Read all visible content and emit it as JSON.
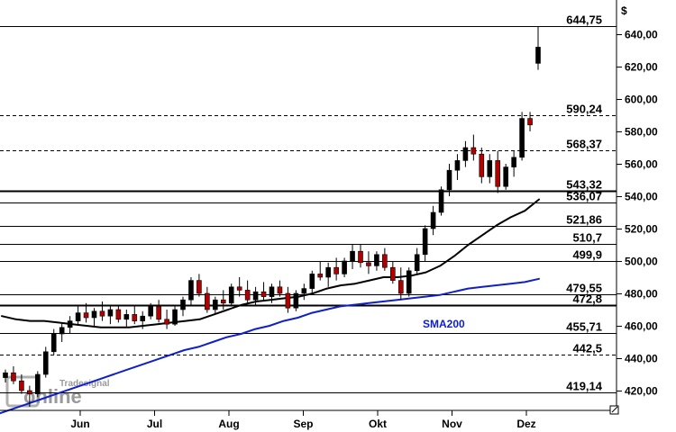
{
  "chart_data": {
    "type": "candlestick",
    "currency_label": "$",
    "ylim": [
      405,
      650
    ],
    "y_ticks": [
      420,
      440,
      460,
      480,
      500,
      520,
      540,
      560,
      580,
      600,
      620,
      640
    ],
    "y_tick_labels": [
      "420,00",
      "440,00",
      "460,00",
      "480,00",
      "500,00",
      "520,00",
      "540,00",
      "560,00",
      "580,00",
      "600,00",
      "620,00",
      "640,00"
    ],
    "x_labels": [
      "Jun",
      "Jul",
      "Aug",
      "Sep",
      "Okt",
      "Nov",
      "Dez"
    ],
    "levels": [
      {
        "value": 644.75,
        "label": "644,75",
        "style": "solid"
      },
      {
        "value": 590.24,
        "label": "590,24",
        "style": "dashed"
      },
      {
        "value": 568.37,
        "label": "568,37",
        "style": "dashed"
      },
      {
        "value": 543.32,
        "label": "543,32",
        "style": "bold"
      },
      {
        "value": 536.07,
        "label": "536,07",
        "style": "solid"
      },
      {
        "value": 521.86,
        "label": "521,86",
        "style": "solid"
      },
      {
        "value": 510.7,
        "label": "510,7",
        "style": "solid"
      },
      {
        "value": 499.9,
        "label": "499,9",
        "style": "solid"
      },
      {
        "value": 479.55,
        "label": "479,55",
        "style": "solid"
      },
      {
        "value": 472.8,
        "label": "472,8",
        "style": "bold"
      },
      {
        "value": 455.71,
        "label": "455,71",
        "style": "solid"
      },
      {
        "value": 442.5,
        "label": "442,5",
        "style": "dashed"
      },
      {
        "value": 419.14,
        "label": "419,14",
        "style": "solid"
      }
    ],
    "series": [
      {
        "name": "SMA200",
        "color": "#1020c8",
        "values": [
          406,
          409,
          412,
          415,
          418,
          421,
          424,
          427,
          430,
          433,
          436,
          439,
          442,
          445,
          447,
          450,
          453,
          455,
          458,
          460,
          463,
          465,
          468,
          470,
          472,
          473,
          474,
          475,
          476,
          477,
          478,
          479,
          481,
          483,
          484,
          485,
          486,
          487,
          489
        ]
      },
      {
        "name": "",
        "color": "#000000",
        "values": [
          466,
          464,
          463,
          463,
          462,
          461,
          460,
          459,
          459,
          459,
          460,
          461,
          462,
          463,
          464,
          467,
          470,
          473,
          475,
          476,
          477,
          478,
          480,
          483,
          485,
          486,
          488,
          490,
          490,
          491,
          493,
          497,
          503,
          510,
          516,
          522,
          527,
          531,
          538
        ]
      }
    ],
    "candles": [
      [
        428,
        433,
        425,
        431
      ],
      [
        431,
        435,
        424,
        426
      ],
      [
        426,
        430,
        418,
        420
      ],
      [
        420,
        423,
        410,
        418
      ],
      [
        418,
        432,
        416,
        430
      ],
      [
        430,
        447,
        428,
        444
      ],
      [
        444,
        458,
        442,
        455
      ],
      [
        455,
        462,
        450,
        459
      ],
      [
        459,
        466,
        455,
        463
      ],
      [
        463,
        472,
        460,
        468
      ],
      [
        468,
        474,
        462,
        465
      ],
      [
        465,
        471,
        459,
        469
      ],
      [
        469,
        475,
        463,
        466
      ],
      [
        466,
        472,
        461,
        470
      ],
      [
        470,
        473,
        462,
        464
      ],
      [
        464,
        470,
        459,
        467
      ],
      [
        467,
        472,
        461,
        463
      ],
      [
        463,
        469,
        458,
        466
      ],
      [
        466,
        474,
        464,
        472
      ],
      [
        472,
        476,
        462,
        464
      ],
      [
        464,
        470,
        458,
        461
      ],
      [
        461,
        472,
        460,
        470
      ],
      [
        470,
        478,
        466,
        476
      ],
      [
        476,
        490,
        472,
        488
      ],
      [
        488,
        492,
        478,
        480
      ],
      [
        480,
        484,
        468,
        470
      ],
      [
        470,
        478,
        467,
        476
      ],
      [
        476,
        482,
        470,
        474
      ],
      [
        474,
        486,
        472,
        484
      ],
      [
        484,
        490,
        478,
        482
      ],
      [
        482,
        488,
        474,
        476
      ],
      [
        476,
        484,
        472,
        481
      ],
      [
        481,
        487,
        476,
        478
      ],
      [
        478,
        486,
        474,
        484
      ],
      [
        484,
        488,
        478,
        480
      ],
      [
        480,
        484,
        468,
        471
      ],
      [
        471,
        482,
        469,
        480
      ],
      [
        480,
        486,
        476,
        483
      ],
      [
        483,
        494,
        480,
        492
      ],
      [
        492,
        500,
        488,
        490
      ],
      [
        490,
        499,
        484,
        496
      ],
      [
        496,
        502,
        488,
        492
      ],
      [
        492,
        502,
        490,
        500
      ],
      [
        500,
        510,
        495,
        506
      ],
      [
        506,
        510,
        496,
        499
      ],
      [
        499,
        506,
        492,
        497
      ],
      [
        497,
        506,
        494,
        504
      ],
      [
        504,
        508,
        494,
        496
      ],
      [
        496,
        500,
        486,
        488
      ],
      [
        488,
        496,
        476,
        480
      ],
      [
        480,
        496,
        478,
        494
      ],
      [
        494,
        508,
        492,
        504
      ],
      [
        504,
        522,
        500,
        520
      ],
      [
        520,
        534,
        516,
        530
      ],
      [
        530,
        546,
        528,
        544
      ],
      [
        544,
        560,
        540,
        556
      ],
      [
        556,
        566,
        550,
        562
      ],
      [
        562,
        574,
        558,
        570
      ],
      [
        570,
        578,
        562,
        566
      ],
      [
        566,
        570,
        548,
        552
      ],
      [
        552,
        566,
        548,
        562
      ],
      [
        562,
        568,
        542,
        546
      ],
      [
        546,
        560,
        544,
        558
      ],
      [
        558,
        568,
        552,
        564
      ],
      [
        564,
        592,
        562,
        588
      ],
      [
        588,
        592,
        580,
        584
      ],
      [
        622,
        645,
        618,
        632
      ]
    ]
  },
  "watermark": {
    "brand_small": "Tradesignal",
    "brand_large": "online"
  },
  "annotations": {
    "sma200_label": "SMA200"
  }
}
